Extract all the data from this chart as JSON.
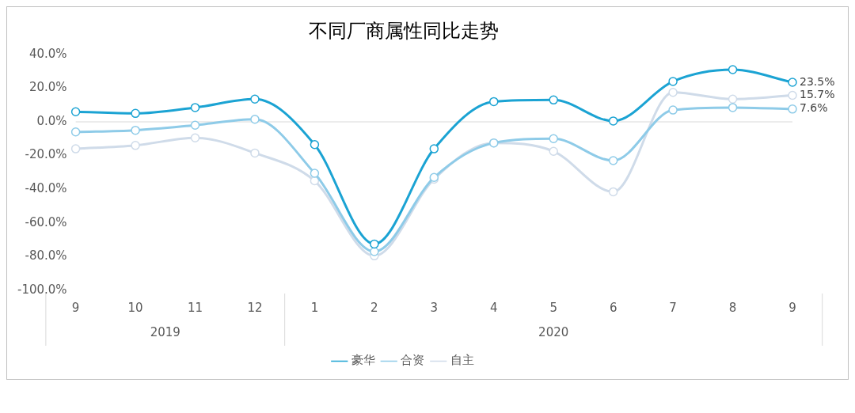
{
  "chart_data": {
    "type": "line",
    "title": "不同厂商属性同比走势",
    "categories": [
      "9",
      "10",
      "11",
      "12",
      "1",
      "2",
      "3",
      "4",
      "5",
      "6",
      "7",
      "8",
      "9"
    ],
    "series": [
      {
        "name": "豪华",
        "color": "#1ba3d3",
        "values": [
          6,
          5,
          8.5,
          13.5,
          -13.5,
          -72.5,
          -16,
          12,
          13,
          0.5,
          24,
          31,
          23.5
        ],
        "value_labels": [
          null,
          null,
          null,
          null,
          null,
          null,
          null,
          null,
          null,
          null,
          null,
          null,
          "23.5%"
        ]
      },
      {
        "name": "合资",
        "color": "#8ecbe8",
        "values": [
          -6,
          -5,
          -2,
          1.5,
          -30.5,
          -77,
          -33,
          -12.5,
          -10,
          -23,
          7,
          8.5,
          7.6
        ],
        "value_labels": [
          null,
          null,
          null,
          null,
          null,
          null,
          null,
          null,
          null,
          null,
          null,
          null,
          "7.6%"
        ]
      },
      {
        "name": "自主",
        "color": "#cfdbe9",
        "values": [
          -16,
          -14,
          -9.5,
          -18.5,
          -35,
          -79.5,
          -34,
          -12.5,
          -17.5,
          -41.5,
          17.5,
          13.5,
          15.7
        ],
        "value_labels": [
          null,
          null,
          null,
          null,
          null,
          null,
          null,
          null,
          null,
          null,
          null,
          null,
          "15.7%"
        ]
      }
    ],
    "ylim": [
      -100,
      40
    ],
    "yticks": [
      {
        "value": -100,
        "label": "-100.0%"
      },
      {
        "value": -80,
        "label": "-80.0%"
      },
      {
        "value": -60,
        "label": "-60.0%"
      },
      {
        "value": -40,
        "label": "-40.0%"
      },
      {
        "value": -20,
        "label": "-20.0%"
      },
      {
        "value": 0,
        "label": "0.0%"
      },
      {
        "value": 20,
        "label": "20.0%"
      },
      {
        "value": 40,
        "label": "40.0%"
      }
    ],
    "ref_lines": [
      {
        "axis": "y",
        "value": 0,
        "color": "#d9d9d9"
      }
    ],
    "annotations": [
      "2019",
      "2020"
    ],
    "grid": false,
    "legend": "bottom",
    "marker": "circle",
    "line_style": "solid"
  }
}
